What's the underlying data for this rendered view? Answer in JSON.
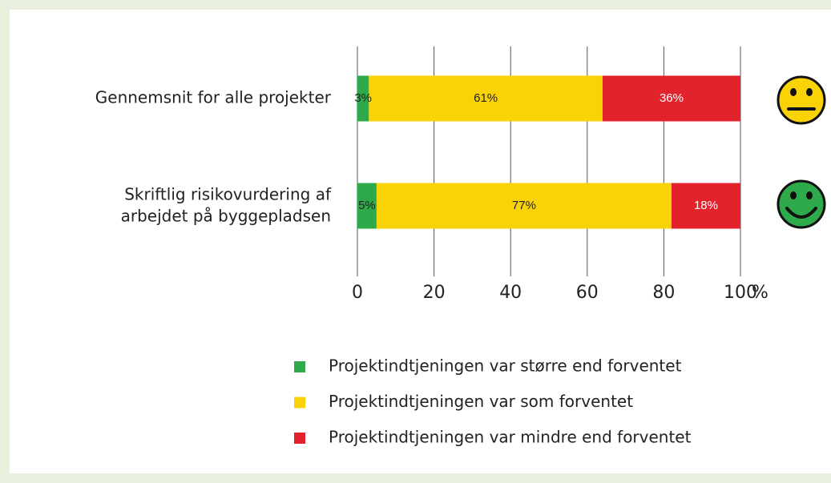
{
  "chart_data": {
    "type": "stacked_barh",
    "categories": [
      "Gennemsnit for alle projekter",
      "Skriftlig risikovurdering af\narbejdet på byggepladsen"
    ],
    "series": [
      {
        "name": "Projektindtjeningen var større end forventet",
        "color": "#2eaa4a",
        "values": [
          3,
          5
        ],
        "value_labels": [
          "3%",
          "5%"
        ]
      },
      {
        "name": "Projektindtjeningen var som forventet",
        "color": "#f9d308",
        "values": [
          61,
          77
        ],
        "value_labels": [
          "61%",
          "77%"
        ]
      },
      {
        "name": "Projektindtjeningen var mindre end forventet",
        "color": "#e3232b",
        "values": [
          36,
          18
        ],
        "value_labels": [
          "36%",
          "18%"
        ]
      }
    ],
    "xlim": [
      0,
      100
    ],
    "xticks": [
      0,
      20,
      40,
      60,
      80,
      100
    ],
    "xlabel": "%",
    "grid": true
  }
}
